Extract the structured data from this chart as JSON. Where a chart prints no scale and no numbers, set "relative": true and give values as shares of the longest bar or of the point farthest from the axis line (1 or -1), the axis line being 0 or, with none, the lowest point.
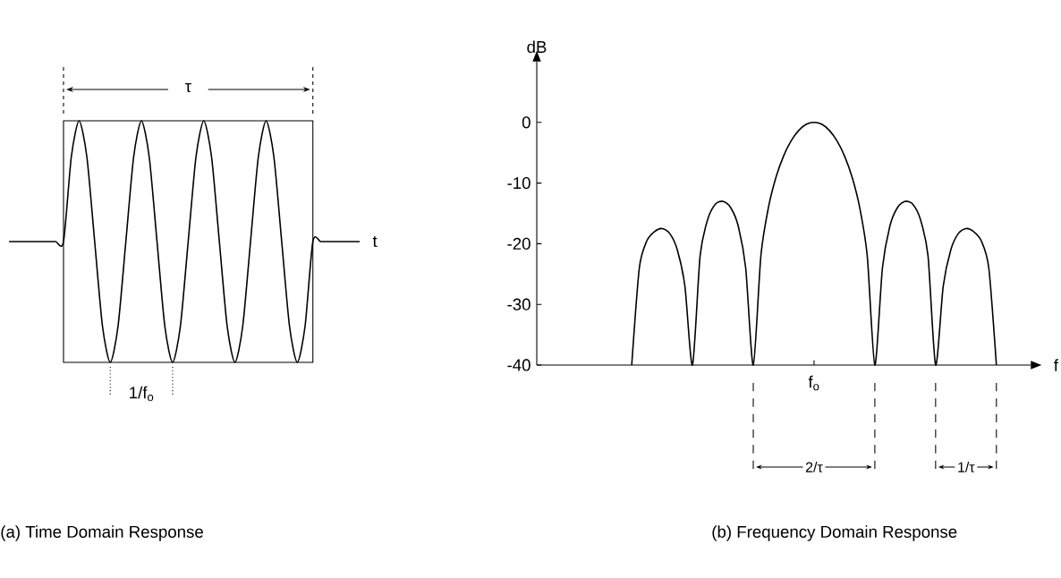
{
  "chart_data": [
    {
      "type": "line",
      "relative": true,
      "title": "(a) Time Domain Response",
      "xlabel": "t",
      "color": "#000000",
      "marker": "none",
      "categories": [
        null,
        null,
        null,
        null,
        null,
        null,
        null,
        null,
        null,
        null,
        null,
        null,
        null,
        null,
        null,
        null,
        null,
        null,
        null,
        null,
        null,
        null,
        null,
        null,
        null,
        null,
        null,
        null,
        null,
        null,
        null,
        null,
        null,
        null,
        null,
        null,
        null,
        null,
        null,
        null,
        null,
        null,
        null,
        null,
        null,
        null
      ],
      "values": [
        0.5,
        0.5,
        0.5,
        0.5,
        0.5,
        0.5,
        0.5,
        0.5,
        0.85,
        1,
        0.85,
        0.5,
        0.15,
        0,
        0.15,
        0.5,
        0.85,
        1,
        0.85,
        0.5,
        0.15,
        0,
        0.15,
        0.5,
        0.85,
        1,
        0.85,
        0.5,
        0.15,
        0,
        0.15,
        0.5,
        0.85,
        1,
        0.85,
        0.5,
        0.15,
        0,
        0.15,
        0.5,
        0.5,
        0.5,
        0.5,
        0.5,
        0.5,
        0.5
      ],
      "annotations": [
        "τ",
        "1/f$_{o}$"
      ]
    },
    {
      "type": "line",
      "title": "(b) Frequency Domain Response",
      "xlabel": "f",
      "ylabel": "dB",
      "color": "#000000",
      "marker": "none",
      "categories": [
        null,
        null,
        null,
        null,
        null,
        null,
        null,
        null,
        null,
        null,
        null,
        null,
        null,
        null,
        null,
        null,
        null,
        null,
        null,
        null,
        null,
        null,
        null,
        null,
        null,
        null,
        null,
        null,
        null,
        null,
        null,
        null,
        null,
        null,
        null,
        null,
        "f$_{o}$",
        null,
        null,
        null,
        null,
        null,
        null,
        null,
        null,
        null,
        null,
        null,
        null,
        null,
        null,
        null,
        null,
        null,
        null,
        null,
        null,
        null,
        null,
        null,
        null,
        null,
        null,
        null,
        null
      ],
      "values": [
        null,
        null,
        null,
        null,
        null,
        null,
        null,
        null,
        null,
        null,
        null,
        null,
        -40,
        -24,
        -19.5,
        -18,
        -17.5,
        -18.3,
        -21,
        -27,
        -40,
        -22,
        -16,
        -13.5,
        -13,
        -14,
        -17,
        -24,
        -40,
        -22,
        -14,
        -9,
        -5.5,
        -3,
        -1.3,
        -0.3,
        0,
        -0.3,
        -1.3,
        -3,
        -5.5,
        -9,
        -14,
        -22,
        -40,
        -24,
        -17,
        -14,
        -13,
        -13.5,
        -16,
        -22,
        -40,
        -27,
        -21,
        -18.3,
        -17.5,
        -18,
        -19.5,
        -24,
        -40,
        null,
        null,
        null,
        null
      ],
      "ylim": [
        -40,
        10
      ],
      "yticks": [
        -40,
        -30,
        -20,
        -10,
        0
      ],
      "annotations": [
        "2/τ",
        "1/τ"
      ]
    }
  ]
}
